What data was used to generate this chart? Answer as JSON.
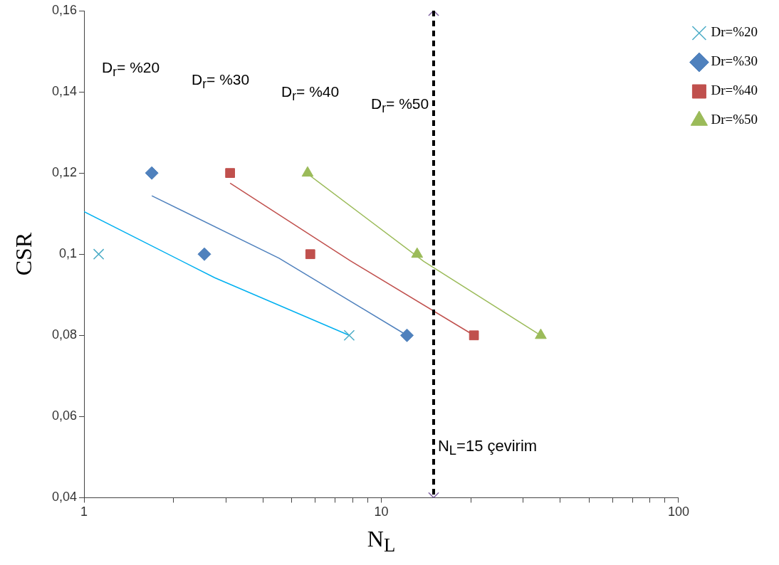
{
  "chart_data": {
    "type": "scatter",
    "xlabel": "N$_{L}$",
    "ylabel": "CSR",
    "log": "x",
    "grid": false,
    "legend": "top right",
    "xlim": [
      1,
      100
    ],
    "xticks": [
      1,
      {
        "value": 2,
        "label": null
      },
      {
        "value": 3,
        "label": null
      },
      {
        "value": 4,
        "label": null
      },
      {
        "value": 5,
        "label": null
      },
      {
        "value": 6,
        "label": null
      },
      {
        "value": 7,
        "label": null
      },
      {
        "value": 8,
        "label": null
      },
      {
        "value": 9,
        "label": null
      },
      10,
      {
        "value": 20,
        "label": null
      },
      {
        "value": 30,
        "label": null
      },
      {
        "value": 40,
        "label": null
      },
      {
        "value": 50,
        "label": null
      },
      {
        "value": 60,
        "label": null
      },
      {
        "value": 70,
        "label": null
      },
      {
        "value": 80,
        "label": null
      },
      {
        "value": 90,
        "label": null
      },
      100
    ],
    "ylim": [
      0.04,
      0.16
    ],
    "yticks": [
      {
        "value": 0.04,
        "label": "0,04"
      },
      {
        "value": 0.06,
        "label": "0,06"
      },
      {
        "value": 0.08,
        "label": "0,08"
      },
      {
        "value": 0.1,
        "label": "0,1"
      },
      {
        "value": 0.12,
        "label": "0,12"
      },
      {
        "value": 0.14,
        "label": "0,14"
      },
      {
        "value": 0.16,
        "label": "0,16"
      }
    ],
    "series": [
      {
        "name": "Dr=%20",
        "color": "#4bacc6",
        "marker": "cross",
        "x": [
          1.12,
          7.8
        ],
        "values": [
          0.1,
          0.08
        ]
      },
      {
        "name": "Dr=%30",
        "color": "#4f81bd",
        "marker": "diamond",
        "x": [
          1.69,
          2.54,
          12.2
        ],
        "values": [
          0.12,
          0.1,
          0.08
        ]
      },
      {
        "name": "Dr=%40",
        "color": "#c0504d",
        "marker": "square",
        "x": [
          3.1,
          5.77,
          20.5
        ],
        "values": [
          0.12,
          0.1,
          0.08
        ]
      },
      {
        "name": "Dr=%50",
        "color": "#9bbb59",
        "marker": "triangle",
        "x": [
          5.65,
          13.2,
          34.4
        ],
        "values": [
          0.12,
          0.1,
          0.08
        ]
      },
      {
        "type": "line",
        "color": "#00b0f0",
        "marker": "none",
        "x": [
          1,
          2.75,
          7.8
        ],
        "values": [
          0.1105,
          0.0942,
          0.08
        ]
      },
      {
        "type": "line",
        "color": "#4f81bd",
        "marker": "none",
        "x": [
          1.69,
          4.53,
          12.2
        ],
        "values": [
          0.1144,
          0.099,
          0.08
        ]
      },
      {
        "type": "line",
        "color": "#c0504d",
        "marker": "none",
        "x": [
          3.1,
          7.86,
          20.5
        ],
        "values": [
          0.1175,
          0.0984,
          0.08
        ]
      },
      {
        "type": "line",
        "color": "#9bbb59",
        "marker": "none",
        "x": [
          5.65,
          13.9,
          34.4
        ],
        "values": [
          0.1198,
          0.0982,
          0.08
        ]
      },
      {
        "color": "#8064a2",
        "marker": "cross",
        "x": [
          15,
          15
        ],
        "values": [
          0.04,
          0.16
        ]
      }
    ],
    "ref_lines": [
      {
        "axis": "x",
        "value": 15,
        "label": "N$_{L}$=15 çevirim",
        "color": "#000000",
        "line_style": "dashed"
      }
    ],
    "annotations": [
      "D$_{r}$= %20",
      "D$_{r}$= %30",
      "D$_{r}$= %40",
      "D$_{r}$= %50"
    ]
  }
}
